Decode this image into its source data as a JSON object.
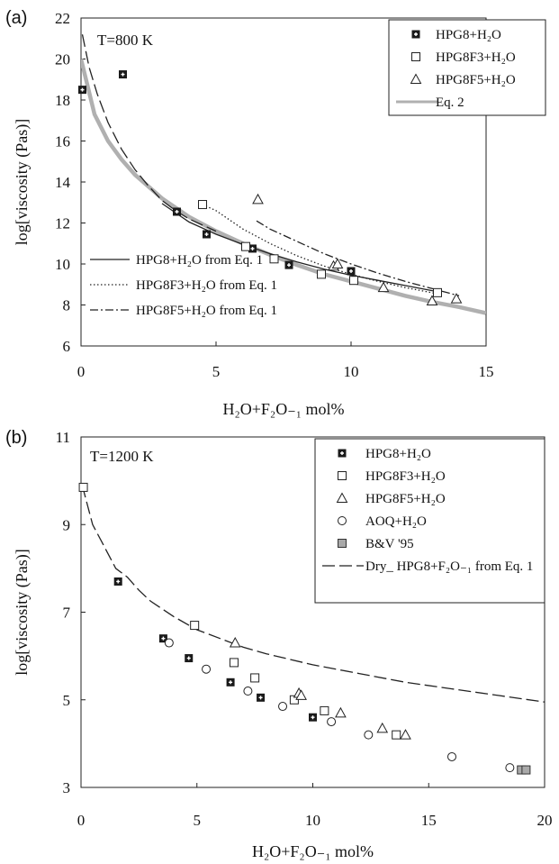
{
  "chart_data": [
    {
      "panel_label": "(a)",
      "type": "scatter",
      "annotation": "T=800 K",
      "xlabel": "H₂O+F₂O₋₁ mol%",
      "ylabel": "log[viscosity (Pas)]",
      "xlim": [
        0,
        15
      ],
      "ylim": [
        6,
        22
      ],
      "xticks": [
        "0",
        "5",
        "10",
        "15"
      ],
      "yticks": [
        "6",
        "8",
        "10",
        "12",
        "14",
        "16",
        "18",
        "20",
        "22"
      ],
      "legend_position": "top-right",
      "series": [
        {
          "name": "HPG8+H₂O",
          "marker": "filled-square",
          "x": [
            0.05,
            1.55,
            3.55,
            4.65,
            6.35,
            7.7,
            10.0
          ],
          "y": [
            18.5,
            19.25,
            12.55,
            11.45,
            10.75,
            9.95,
            9.65
          ]
        },
        {
          "name": "HPG8F3+H₂O",
          "marker": "open-square",
          "x": [
            4.5,
            6.1,
            7.15,
            8.9,
            10.1,
            13.2
          ],
          "y": [
            12.9,
            10.85,
            10.25,
            9.5,
            9.2,
            8.6
          ]
        },
        {
          "name": "HPG8F5+H₂O",
          "marker": "open-triangle",
          "x": [
            6.55,
            9.35,
            9.5,
            11.2,
            13.0,
            13.9
          ],
          "y": [
            13.15,
            9.9,
            10.0,
            8.85,
            8.2,
            8.3
          ]
        },
        {
          "name": "Eq. 2",
          "style": "thick-grey-line",
          "x": [
            0.0,
            0.5,
            1.0,
            1.5,
            2.0,
            3.0,
            4.0,
            5.0,
            6.0,
            7.0,
            8.0,
            9.0,
            10.0,
            11.0,
            12.0,
            13.0,
            14.0,
            15.0
          ],
          "y": [
            20.0,
            17.3,
            16.0,
            15.1,
            14.35,
            13.2,
            12.3,
            11.6,
            11.0,
            10.45,
            9.95,
            9.5,
            9.15,
            8.8,
            8.45,
            8.15,
            7.9,
            7.6
          ]
        },
        {
          "name": "HPG8+H₂O from Eq. 1",
          "style": "solid",
          "x": [
            3.0,
            4.0,
            5.0,
            6.0,
            7.0,
            8.0,
            9.0,
            10.0,
            11.0,
            12.0,
            13.0,
            13.3
          ],
          "y": [
            12.95,
            12.05,
            11.45,
            10.95,
            10.5,
            10.1,
            9.75,
            9.45,
            9.2,
            8.95,
            8.7,
            8.6
          ]
        },
        {
          "name": "HPG8F3+H₂O from Eq. 1",
          "style": "dotted",
          "x": [
            4.5,
            5.0,
            6.0,
            7.0,
            8.0,
            9.0,
            10.0,
            11.0,
            12.0,
            13.0,
            13.3
          ],
          "y": [
            12.9,
            12.6,
            11.7,
            11.0,
            10.4,
            9.9,
            9.5,
            9.15,
            8.85,
            8.6,
            8.5
          ]
        },
        {
          "name": "HPG8F5+H₂O from Eq. 1",
          "style": "dash-dot",
          "x": [
            6.5,
            7.0,
            8.0,
            9.0,
            10.0,
            11.0,
            12.0,
            13.0,
            14.0
          ],
          "y": [
            12.1,
            11.7,
            11.1,
            10.5,
            10.0,
            9.55,
            9.15,
            8.8,
            8.45
          ]
        },
        {
          "name": "",
          "style": "long-dash",
          "x": [
            0.05,
            0.3,
            0.6,
            1.0,
            1.5,
            2.0,
            2.5,
            3.0,
            3.5,
            4.0,
            4.5,
            5.0
          ],
          "y": [
            21.2,
            19.6,
            18.3,
            16.9,
            15.6,
            14.6,
            13.8,
            13.1,
            12.6,
            12.2,
            11.9,
            11.6
          ]
        }
      ]
    },
    {
      "panel_label": "(b)",
      "type": "scatter",
      "annotation": "T=1200 K",
      "xlabel": "H₂O+F₂O₋₁ mol%",
      "ylabel": "log[viscosity (Pas)]",
      "xlim": [
        0,
        20
      ],
      "ylim": [
        3,
        11
      ],
      "xticks": [
        "0",
        "5",
        "10",
        "15",
        "20"
      ],
      "yticks": [
        "3",
        "5",
        "7",
        "9",
        "11"
      ],
      "legend_position": "top-right",
      "series": [
        {
          "name": "HPG8+H₂O",
          "marker": "filled-square",
          "x": [
            0.1,
            1.6,
            3.55,
            4.65,
            6.45,
            7.75,
            10.0
          ],
          "y": [
            9.85,
            7.7,
            6.4,
            5.95,
            5.4,
            5.05,
            4.6
          ]
        },
        {
          "name": "HPG8F3+H₂O",
          "marker": "open-square",
          "x": [
            0.1,
            4.9,
            6.6,
            7.5,
            9.2,
            10.5,
            13.6
          ],
          "y": [
            9.85,
            6.7,
            5.85,
            5.5,
            5.0,
            4.75,
            4.2
          ]
        },
        {
          "name": "HPG8F5+H₂O",
          "marker": "open-triangle",
          "x": [
            6.65,
            9.4,
            9.5,
            11.2,
            13.0,
            14.0
          ],
          "y": [
            6.3,
            5.15,
            5.1,
            4.7,
            4.35,
            4.2
          ]
        },
        {
          "name": "AOQ+H₂O",
          "marker": "open-circle",
          "x": [
            3.8,
            5.4,
            7.2,
            8.7,
            10.8,
            12.4,
            16.0,
            18.5
          ],
          "y": [
            6.3,
            5.7,
            5.2,
            4.85,
            4.5,
            4.2,
            3.7,
            3.45
          ]
        },
        {
          "name": "B&V '95",
          "marker": "grey-square",
          "x": [
            19.0,
            19.2
          ],
          "y": [
            3.4,
            3.4
          ]
        },
        {
          "name": "Dry_ HPG8+F₂O₋₁ from Eq. 1",
          "style": "long-dash",
          "x": [
            0.05,
            0.5,
            1.0,
            1.5,
            2.0,
            2.5,
            3.0,
            4.0,
            5.0,
            6.0,
            7.0,
            8.0,
            10.0,
            12.0,
            14.0,
            16.0,
            18.0,
            20.0
          ],
          "y": [
            9.9,
            9.0,
            8.5,
            8.0,
            7.8,
            7.5,
            7.25,
            6.9,
            6.6,
            6.4,
            6.2,
            6.05,
            5.8,
            5.6,
            5.4,
            5.25,
            5.1,
            4.95
          ]
        }
      ]
    }
  ]
}
